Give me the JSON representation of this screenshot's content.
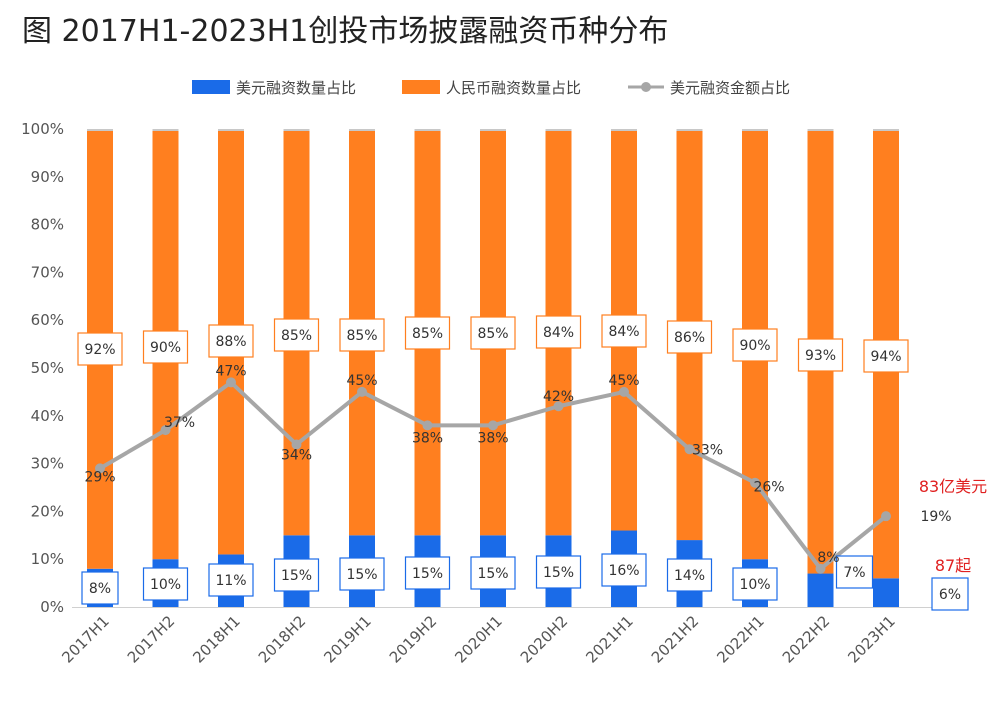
{
  "title": "图 2017H1-2023H1创投市场披露融资币种分布",
  "chart_data": {
    "type": "bar",
    "stacked": true,
    "categories": [
      "2017H1",
      "2017H2",
      "2018H1",
      "2018H2",
      "2019H1",
      "2019H2",
      "2020H1",
      "2020H2",
      "2021H1",
      "2021H2",
      "2022H1",
      "2022H2",
      "2023H1"
    ],
    "series": [
      {
        "name": "美元融资数量占比",
        "kind": "bar",
        "color": "#1a6be8",
        "values": [
          8,
          10,
          11,
          15,
          15,
          15,
          15,
          15,
          16,
          14,
          10,
          7,
          6
        ],
        "labels": [
          "8%",
          "10%",
          "11%",
          "15%",
          "15%",
          "15%",
          "15%",
          "15%",
          "16%",
          "14%",
          "10%",
          "7%",
          "6%"
        ]
      },
      {
        "name": "人民币融资数量占比",
        "kind": "bar",
        "color": "#ff7f1f",
        "values": [
          92,
          90,
          88,
          85,
          85,
          85,
          85,
          84,
          84,
          86,
          90,
          93,
          94
        ],
        "labels": [
          "92%",
          "90%",
          "88%",
          "85%",
          "85%",
          "85%",
          "85%",
          "84%",
          "84%",
          "86%",
          "90%",
          "93%",
          "94%"
        ]
      },
      {
        "name": "美元融资金额占比",
        "kind": "line",
        "color": "#a6a6a6",
        "values": [
          29,
          37,
          47,
          34,
          45,
          38,
          38,
          42,
          45,
          33,
          26,
          8,
          19
        ],
        "labels": [
          "29%",
          "37%",
          "47%",
          "34%",
          "45%",
          "38%",
          "38%",
          "42%",
          "45%",
          "33%",
          "26%",
          "8%",
          "19%"
        ]
      }
    ],
    "y_ticks": [
      "0%",
      "10%",
      "20%",
      "30%",
      "40%",
      "50%",
      "60%",
      "70%",
      "80%",
      "90%",
      "100%"
    ],
    "ylim": [
      0,
      100
    ],
    "annotations": [
      "83亿美元",
      "87起"
    ],
    "legend_position": "top",
    "grid": false
  }
}
